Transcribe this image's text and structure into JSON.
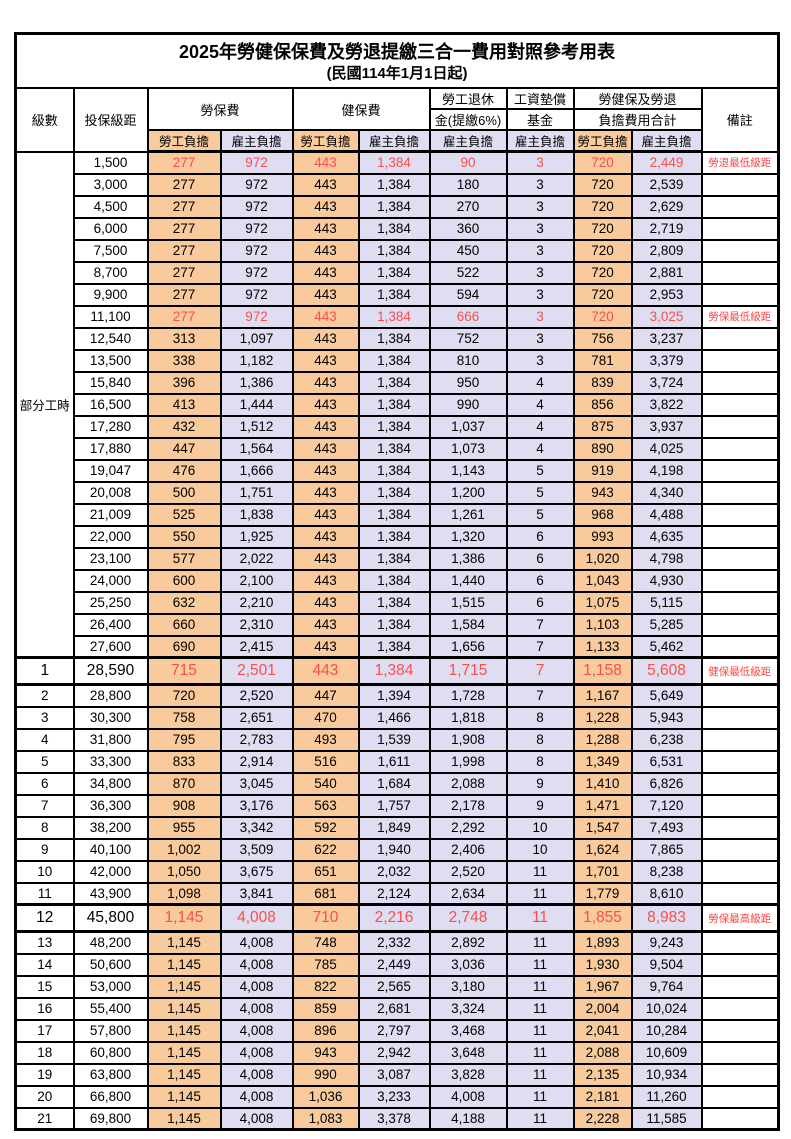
{
  "title": "2025年勞健保保費及勞退提繳三合一費用對照參考用表",
  "subtitle": "(民國114年1月1日起)",
  "colors": {
    "employee_column_bg": "#f9ca9b",
    "employer_column_bg": "#dfddf1",
    "highlight_text": "#f94f4a",
    "remark_text": "#ff4343",
    "border": "#000000"
  },
  "header": {
    "level": "級數",
    "bracket": "投保級距",
    "labor_insurance": "勞保費",
    "health_insurance": "健保費",
    "pension_line1": "勞工退休",
    "pension_line2": "金(提繳6%)",
    "wage_fund_line1": "工資墊償",
    "wage_fund_line2": "基金",
    "total_line1": "勞健保及勞退",
    "total_line2": "負擔費用合計",
    "remark": "備註",
    "employee": "勞工負擔",
    "employer": "雇主負擔"
  },
  "part_time": {
    "label": "部分工時",
    "rowspan": 23
  },
  "rows": [
    {
      "level": "",
      "bracket": "1,500",
      "v": [
        "277",
        "972",
        "443",
        "1,384",
        "90",
        "3",
        "720",
        "2,449"
      ],
      "remark": "勞退最低級距",
      "red": true,
      "big": false
    },
    {
      "level": "",
      "bracket": "3,000",
      "v": [
        "277",
        "972",
        "443",
        "1,384",
        "180",
        "3",
        "720",
        "2,539"
      ],
      "remark": "",
      "red": false,
      "big": false
    },
    {
      "level": "",
      "bracket": "4,500",
      "v": [
        "277",
        "972",
        "443",
        "1,384",
        "270",
        "3",
        "720",
        "2,629"
      ],
      "remark": "",
      "red": false,
      "big": false
    },
    {
      "level": "",
      "bracket": "6,000",
      "v": [
        "277",
        "972",
        "443",
        "1,384",
        "360",
        "3",
        "720",
        "2,719"
      ],
      "remark": "",
      "red": false,
      "big": false
    },
    {
      "level": "",
      "bracket": "7,500",
      "v": [
        "277",
        "972",
        "443",
        "1,384",
        "450",
        "3",
        "720",
        "2,809"
      ],
      "remark": "",
      "red": false,
      "big": false
    },
    {
      "level": "",
      "bracket": "8,700",
      "v": [
        "277",
        "972",
        "443",
        "1,384",
        "522",
        "3",
        "720",
        "2,881"
      ],
      "remark": "",
      "red": false,
      "big": false
    },
    {
      "level": "",
      "bracket": "9,900",
      "v": [
        "277",
        "972",
        "443",
        "1,384",
        "594",
        "3",
        "720",
        "2,953"
      ],
      "remark": "",
      "red": false,
      "big": false
    },
    {
      "level": "",
      "bracket": "11,100",
      "v": [
        "277",
        "972",
        "443",
        "1,384",
        "666",
        "3",
        "720",
        "3,025"
      ],
      "remark": "勞保最低級距",
      "red": true,
      "big": false
    },
    {
      "level": "",
      "bracket": "12,540",
      "v": [
        "313",
        "1,097",
        "443",
        "1,384",
        "752",
        "3",
        "756",
        "3,237"
      ],
      "remark": "",
      "red": false,
      "big": false
    },
    {
      "level": "",
      "bracket": "13,500",
      "v": [
        "338",
        "1,182",
        "443",
        "1,384",
        "810",
        "3",
        "781",
        "3,379"
      ],
      "remark": "",
      "red": false,
      "big": false
    },
    {
      "level": "",
      "bracket": "15,840",
      "v": [
        "396",
        "1,386",
        "443",
        "1,384",
        "950",
        "4",
        "839",
        "3,724"
      ],
      "remark": "",
      "red": false,
      "big": false
    },
    {
      "level": "",
      "bracket": "16,500",
      "v": [
        "413",
        "1,444",
        "443",
        "1,384",
        "990",
        "4",
        "856",
        "3,822"
      ],
      "remark": "",
      "red": false,
      "big": false
    },
    {
      "level": "",
      "bracket": "17,280",
      "v": [
        "432",
        "1,512",
        "443",
        "1,384",
        "1,037",
        "4",
        "875",
        "3,937"
      ],
      "remark": "",
      "red": false,
      "big": false
    },
    {
      "level": "",
      "bracket": "17,880",
      "v": [
        "447",
        "1,564",
        "443",
        "1,384",
        "1,073",
        "4",
        "890",
        "4,025"
      ],
      "remark": "",
      "red": false,
      "big": false
    },
    {
      "level": "",
      "bracket": "19,047",
      "v": [
        "476",
        "1,666",
        "443",
        "1,384",
        "1,143",
        "5",
        "919",
        "4,198"
      ],
      "remark": "",
      "red": false,
      "big": false
    },
    {
      "level": "",
      "bracket": "20,008",
      "v": [
        "500",
        "1,751",
        "443",
        "1,384",
        "1,200",
        "5",
        "943",
        "4,340"
      ],
      "remark": "",
      "red": false,
      "big": false
    },
    {
      "level": "",
      "bracket": "21,009",
      "v": [
        "525",
        "1,838",
        "443",
        "1,384",
        "1,261",
        "5",
        "968",
        "4,488"
      ],
      "remark": "",
      "red": false,
      "big": false
    },
    {
      "level": "",
      "bracket": "22,000",
      "v": [
        "550",
        "1,925",
        "443",
        "1,384",
        "1,320",
        "6",
        "993",
        "4,635"
      ],
      "remark": "",
      "red": false,
      "big": false
    },
    {
      "level": "",
      "bracket": "23,100",
      "v": [
        "577",
        "2,022",
        "443",
        "1,384",
        "1,386",
        "6",
        "1,020",
        "4,798"
      ],
      "remark": "",
      "red": false,
      "big": false
    },
    {
      "level": "",
      "bracket": "24,000",
      "v": [
        "600",
        "2,100",
        "443",
        "1,384",
        "1,440",
        "6",
        "1,043",
        "4,930"
      ],
      "remark": "",
      "red": false,
      "big": false
    },
    {
      "level": "",
      "bracket": "25,250",
      "v": [
        "632",
        "2,210",
        "443",
        "1,384",
        "1,515",
        "6",
        "1,075",
        "5,115"
      ],
      "remark": "",
      "red": false,
      "big": false
    },
    {
      "level": "",
      "bracket": "26,400",
      "v": [
        "660",
        "2,310",
        "443",
        "1,384",
        "1,584",
        "7",
        "1,103",
        "5,285"
      ],
      "remark": "",
      "red": false,
      "big": false
    },
    {
      "level": "",
      "bracket": "27,600",
      "v": [
        "690",
        "2,415",
        "443",
        "1,384",
        "1,656",
        "7",
        "1,133",
        "5,462"
      ],
      "remark": "",
      "red": false,
      "big": false
    },
    {
      "level": "1",
      "bracket": "28,590",
      "v": [
        "715",
        "2,501",
        "443",
        "1,384",
        "1,715",
        "7",
        "1,158",
        "5,608"
      ],
      "remark": "健保最低級距",
      "red": true,
      "big": true
    },
    {
      "level": "2",
      "bracket": "28,800",
      "v": [
        "720",
        "2,520",
        "447",
        "1,394",
        "1,728",
        "7",
        "1,167",
        "5,649"
      ],
      "remark": "",
      "red": false,
      "big": false
    },
    {
      "level": "3",
      "bracket": "30,300",
      "v": [
        "758",
        "2,651",
        "470",
        "1,466",
        "1,818",
        "8",
        "1,228",
        "5,943"
      ],
      "remark": "",
      "red": false,
      "big": false
    },
    {
      "level": "4",
      "bracket": "31,800",
      "v": [
        "795",
        "2,783",
        "493",
        "1,539",
        "1,908",
        "8",
        "1,288",
        "6,238"
      ],
      "remark": "",
      "red": false,
      "big": false
    },
    {
      "level": "5",
      "bracket": "33,300",
      "v": [
        "833",
        "2,914",
        "516",
        "1,611",
        "1,998",
        "8",
        "1,349",
        "6,531"
      ],
      "remark": "",
      "red": false,
      "big": false
    },
    {
      "level": "6",
      "bracket": "34,800",
      "v": [
        "870",
        "3,045",
        "540",
        "1,684",
        "2,088",
        "9",
        "1,410",
        "6,826"
      ],
      "remark": "",
      "red": false,
      "big": false
    },
    {
      "level": "7",
      "bracket": "36,300",
      "v": [
        "908",
        "3,176",
        "563",
        "1,757",
        "2,178",
        "9",
        "1,471",
        "7,120"
      ],
      "remark": "",
      "red": false,
      "big": false
    },
    {
      "level": "8",
      "bracket": "38,200",
      "v": [
        "955",
        "3,342",
        "592",
        "1,849",
        "2,292",
        "10",
        "1,547",
        "7,493"
      ],
      "remark": "",
      "red": false,
      "big": false
    },
    {
      "level": "9",
      "bracket": "40,100",
      "v": [
        "1,002",
        "3,509",
        "622",
        "1,940",
        "2,406",
        "10",
        "1,624",
        "7,865"
      ],
      "remark": "",
      "red": false,
      "big": false
    },
    {
      "level": "10",
      "bracket": "42,000",
      "v": [
        "1,050",
        "3,675",
        "651",
        "2,032",
        "2,520",
        "11",
        "1,701",
        "8,238"
      ],
      "remark": "",
      "red": false,
      "big": false
    },
    {
      "level": "11",
      "bracket": "43,900",
      "v": [
        "1,098",
        "3,841",
        "681",
        "2,124",
        "2,634",
        "11",
        "1,779",
        "8,610"
      ],
      "remark": "",
      "red": false,
      "big": false
    },
    {
      "level": "12",
      "bracket": "45,800",
      "v": [
        "1,145",
        "4,008",
        "710",
        "2,216",
        "2,748",
        "11",
        "1,855",
        "8,983"
      ],
      "remark": "勞保最高級距",
      "red": true,
      "big": true
    },
    {
      "level": "13",
      "bracket": "48,200",
      "v": [
        "1,145",
        "4,008",
        "748",
        "2,332",
        "2,892",
        "11",
        "1,893",
        "9,243"
      ],
      "remark": "",
      "red": false,
      "big": false
    },
    {
      "level": "14",
      "bracket": "50,600",
      "v": [
        "1,145",
        "4,008",
        "785",
        "2,449",
        "3,036",
        "11",
        "1,930",
        "9,504"
      ],
      "remark": "",
      "red": false,
      "big": false
    },
    {
      "level": "15",
      "bracket": "53,000",
      "v": [
        "1,145",
        "4,008",
        "822",
        "2,565",
        "3,180",
        "11",
        "1,967",
        "9,764"
      ],
      "remark": "",
      "red": false,
      "big": false
    },
    {
      "level": "16",
      "bracket": "55,400",
      "v": [
        "1,145",
        "4,008",
        "859",
        "2,681",
        "3,324",
        "11",
        "2,004",
        "10,024"
      ],
      "remark": "",
      "red": false,
      "big": false
    },
    {
      "level": "17",
      "bracket": "57,800",
      "v": [
        "1,145",
        "4,008",
        "896",
        "2,797",
        "3,468",
        "11",
        "2,041",
        "10,284"
      ],
      "remark": "",
      "red": false,
      "big": false
    },
    {
      "level": "18",
      "bracket": "60,800",
      "v": [
        "1,145",
        "4,008",
        "943",
        "2,942",
        "3,648",
        "11",
        "2,088",
        "10,609"
      ],
      "remark": "",
      "red": false,
      "big": false
    },
    {
      "level": "19",
      "bracket": "63,800",
      "v": [
        "1,145",
        "4,008",
        "990",
        "3,087",
        "3,828",
        "11",
        "2,135",
        "10,934"
      ],
      "remark": "",
      "red": false,
      "big": false
    },
    {
      "level": "20",
      "bracket": "66,800",
      "v": [
        "1,145",
        "4,008",
        "1,036",
        "3,233",
        "4,008",
        "11",
        "2,181",
        "11,260"
      ],
      "remark": "",
      "red": false,
      "big": false
    },
    {
      "level": "21",
      "bracket": "69,800",
      "v": [
        "1,145",
        "4,008",
        "1,083",
        "3,378",
        "4,188",
        "11",
        "2,228",
        "11,585"
      ],
      "remark": "",
      "red": false,
      "big": false
    }
  ],
  "value_column_styles": [
    "c-orange",
    "c-lav",
    "c-orange",
    "c-lav",
    "c-lav",
    "c-lav",
    "c-orange",
    "c-lav"
  ]
}
